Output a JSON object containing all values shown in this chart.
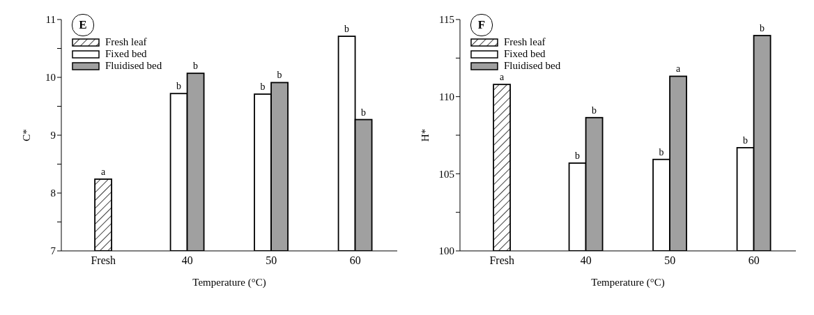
{
  "chart_data": [
    {
      "type": "bar",
      "title": "E",
      "xlabel": "Temperature (°C)",
      "ylabel": "C*",
      "categories": [
        "Fresh",
        "40",
        "50",
        "60"
      ],
      "series": [
        {
          "name": "Fresh leaf",
          "color": "#000000",
          "values": [
            8.24,
            null,
            null,
            null
          ],
          "value_labels": [
            "a",
            null,
            null,
            null
          ]
        },
        {
          "name": "Fixed bed",
          "color": "#ffffff",
          "values": [
            null,
            9.72,
            9.71,
            10.71
          ],
          "value_labels": [
            null,
            "b",
            "b",
            "b"
          ]
        },
        {
          "name": "Fluidised bed",
          "color": "#a0a0a0",
          "values": [
            null,
            10.07,
            9.91,
            9.27
          ],
          "value_labels": [
            null,
            "b",
            "b",
            "b"
          ]
        }
      ],
      "ylim": [
        7,
        11
      ],
      "yticks": [
        7,
        {
          "value": 7.5,
          "label": null
        },
        8,
        {
          "value": 8.5,
          "label": null
        },
        9,
        {
          "value": 9.5,
          "label": null
        },
        10,
        {
          "value": 10.5,
          "label": null
        },
        11
      ],
      "grid": false,
      "legend": "top left"
    },
    {
      "type": "bar",
      "title": "F",
      "xlabel": "Temperature (°C)",
      "ylabel": "H*",
      "categories": [
        "Fresh",
        "40",
        "50",
        "60"
      ],
      "series": [
        {
          "name": "Fresh leaf",
          "color": "#000000",
          "values": [
            110.79,
            null,
            null,
            null
          ],
          "value_labels": [
            "a",
            null,
            null,
            null
          ]
        },
        {
          "name": "Fixed bed",
          "color": "#ffffff",
          "values": [
            null,
            105.69,
            105.93,
            106.69
          ],
          "value_labels": [
            null,
            "b",
            "b",
            "b"
          ]
        },
        {
          "name": "Fluidised bed",
          "color": "#a0a0a0",
          "values": [
            null,
            108.64,
            111.32,
            113.96
          ],
          "value_labels": [
            null,
            "b",
            "a",
            "b"
          ]
        }
      ],
      "ylim": [
        100,
        115
      ],
      "yticks": [
        100,
        {
          "value": 102.5,
          "label": null
        },
        105,
        {
          "value": 107.5,
          "label": null
        },
        110,
        {
          "value": 112.5,
          "label": null
        },
        115
      ],
      "grid": false,
      "legend": "top left"
    }
  ]
}
